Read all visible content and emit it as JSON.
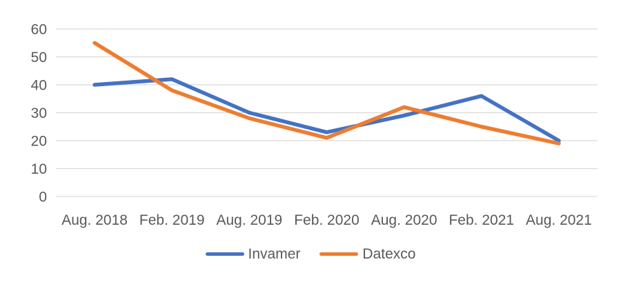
{
  "chart_data": {
    "type": "line",
    "title": "",
    "xlabel": "",
    "ylabel": "",
    "categories": [
      "Aug. 2018",
      "Feb. 2019",
      "Aug. 2019",
      "Feb. 2020",
      "Aug. 2020",
      "Feb. 2021",
      "Aug. 2021"
    ],
    "series": [
      {
        "name": "Invamer",
        "color": "#4472C4",
        "values": [
          40,
          42,
          30,
          23,
          29,
          36,
          20
        ]
      },
      {
        "name": "Datexco",
        "color": "#ED7D31",
        "values": [
          55,
          38,
          28,
          21,
          32,
          25,
          19
        ]
      }
    ],
    "ylim": [
      0,
      60
    ],
    "yticks": [
      0,
      10,
      20,
      30,
      40,
      50,
      60
    ],
    "grid": true,
    "legend_position": "bottom"
  },
  "style": {
    "gridline_color": "#D9D9D9",
    "axis_text_color": "#595959",
    "background_color": "#FFFFFF",
    "line_width": 5.5
  }
}
